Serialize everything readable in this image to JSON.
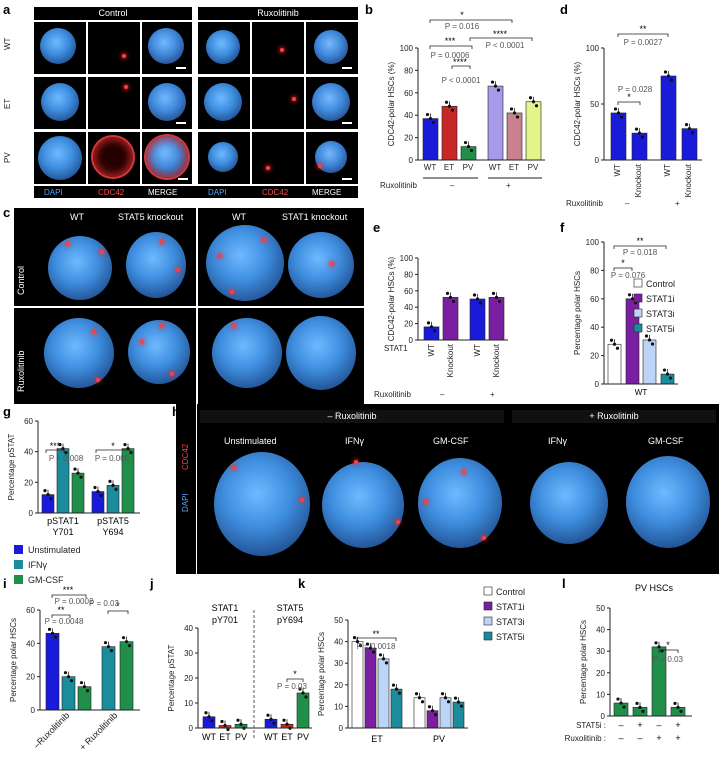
{
  "panels": {
    "a": "a",
    "b": "b",
    "c": "c",
    "d": "d",
    "e": "e",
    "f": "f",
    "g": "g",
    "h": "h",
    "i": "i",
    "j": "j",
    "k": "k",
    "l": "l"
  },
  "panel_a": {
    "col_headers": [
      "Control",
      "Ruxolitinib"
    ],
    "row_labels": [
      "WT",
      "ET",
      "PV"
    ],
    "channels": [
      "DAPI",
      "CDC42",
      "MERGE",
      "DAPI",
      "CDC42",
      "MERGE"
    ]
  },
  "panel_c": {
    "col_headers": [
      "WT",
      "STAT5 knockout",
      "WT",
      "STAT1 knockout"
    ],
    "row_labels": [
      "Control",
      "Ruxolitinib"
    ]
  },
  "panel_h": {
    "group_headers": [
      "– Ruxolitinib",
      "+ Ruxolitinib"
    ],
    "col_headers": [
      "Unstimulated",
      "IFNγ",
      "GM-CSF",
      "IFNγ",
      "GM-CSF"
    ],
    "side_labels": [
      "CDC42",
      "DAPI"
    ]
  },
  "colors": {
    "blue": "#1a1adb",
    "purple": "#7b1fa2",
    "lightblue": "#bcd4f5",
    "teal": "#1b8c9c",
    "green": "#1f8f4a",
    "red": "#c62828",
    "lavender": "#a59be8",
    "mauve": "#c9808f",
    "lime": "#e3f58a"
  },
  "chart_data": [
    {
      "panel": "b",
      "type": "bar",
      "ylabel": "CDC42-polar HSCs (%)",
      "ylim": [
        0,
        100
      ],
      "yticks": [
        0,
        20,
        40,
        60,
        80,
        100
      ],
      "categories": [
        "WT",
        "ET",
        "PV",
        "WT",
        "ET",
        "PV"
      ],
      "values": [
        37,
        48,
        12,
        66,
        42,
        52
      ],
      "treatment_label": "Ruxolitinib",
      "treatment_groups": [
        "–",
        "+"
      ],
      "annotations": [
        "*",
        "P = 0.016",
        "***",
        "P = 0.0006",
        "****",
        "P < 0.0001",
        "****",
        "P < 0.0001"
      ]
    },
    {
      "panel": "d",
      "type": "bar",
      "ylabel": "CDC42-polar HSCs (%)",
      "ylim": [
        0,
        100
      ],
      "yticks": [
        0,
        50,
        100
      ],
      "categories": [
        "WT",
        "Knockout",
        "WT",
        "Knockout"
      ],
      "values": [
        42,
        24,
        75,
        28
      ],
      "treatment_label": "Ruxolitinib",
      "treatment_groups": [
        "–",
        "+"
      ],
      "annotations": [
        "**",
        "P = 0.0027",
        "*",
        "P = 0.028"
      ]
    },
    {
      "panel": "e",
      "type": "bar",
      "ylabel": "CDC42-polar HSCs (%)",
      "ylim": [
        0,
        100
      ],
      "yticks": [
        0,
        20,
        40,
        60,
        80,
        100
      ],
      "categories": [
        "WT",
        "Knockout",
        "WT",
        "Knockout"
      ],
      "values": [
        16,
        52,
        50,
        52
      ],
      "row_label": "STAT1",
      "treatment_label": "Ruxolitinib",
      "treatment_groups": [
        "–",
        "+"
      ]
    },
    {
      "panel": "f",
      "type": "bar",
      "ylabel": "Percentage polar HSCs",
      "ylim": [
        0,
        100
      ],
      "yticks": [
        0,
        20,
        40,
        60,
        80,
        100
      ],
      "categories": [
        "Control",
        "STAT1i",
        "STAT3i",
        "STAT5i"
      ],
      "values": [
        28,
        60,
        31,
        7
      ],
      "xlabel": "WT",
      "legend": [
        "Control",
        "STAT1i",
        "STAT3i",
        "STAT5i"
      ],
      "annotations": [
        "**",
        "P = 0.018",
        "*",
        "P = 0.076"
      ]
    },
    {
      "panel": "g",
      "type": "bar",
      "ylabel": "Percentage pSTAT",
      "ylim": [
        0,
        60
      ],
      "yticks": [
        0,
        20,
        40,
        60
      ],
      "categories": [
        "pSTAT1 Y701",
        "pSTAT5 Y694"
      ],
      "series": [
        {
          "name": "Unstimulated",
          "values": [
            12,
            14
          ]
        },
        {
          "name": "IFNγ",
          "values": [
            42,
            18
          ]
        },
        {
          "name": "GM-CSF",
          "values": [
            26,
            42
          ]
        }
      ],
      "annotations": [
        "***",
        "P = 0.008",
        "*",
        "P = 0.005"
      ]
    },
    {
      "panel": "i",
      "type": "bar",
      "ylabel": "Percentage polar HSCs",
      "ylim": [
        0,
        60
      ],
      "yticks": [
        0,
        20,
        40,
        60
      ],
      "categories": [
        "–Ruxolitinib",
        "+ Ruxolitinib"
      ],
      "series": [
        {
          "name": "Unstimulated",
          "values": [
            46,
            38
          ]
        },
        {
          "name": "IFNγ",
          "values": [
            20,
            null
          ]
        },
        {
          "name": "GM-CSF",
          "values": [
            14,
            41
          ]
        }
      ],
      "annotations": [
        "***",
        "P = 0.0002",
        "**",
        "P = 0.0048",
        "*",
        "P = 0.03"
      ]
    },
    {
      "panel": "j",
      "type": "bar",
      "ylabel": "Percentage pSTAT",
      "ylim": [
        0,
        40
      ],
      "yticks": [
        0,
        10,
        20,
        30,
        40
      ],
      "groups": [
        "STAT1 pY701",
        "STAT5 pY694"
      ],
      "categories": [
        "WT",
        "ET",
        "PV",
        "WT",
        "ET",
        "PV"
      ],
      "values": [
        4.5,
        1,
        1.5,
        3.5,
        1.5,
        14
      ],
      "annotations": [
        "*",
        "P = 0.03"
      ]
    },
    {
      "panel": "k",
      "type": "bar",
      "ylabel": "Percentage polar HSCs",
      "ylim": [
        0,
        50
      ],
      "yticks": [
        0,
        10,
        20,
        30,
        40,
        50
      ],
      "categories": [
        "ET",
        "PV"
      ],
      "series": [
        {
          "name": "Control",
          "values": [
            40,
            14
          ]
        },
        {
          "name": "STAT1i",
          "values": [
            37,
            8
          ]
        },
        {
          "name": "STAT3i",
          "values": [
            32,
            14
          ]
        },
        {
          "name": "STAT5i",
          "values": [
            18,
            12
          ]
        }
      ],
      "annotations": [
        "**",
        "P = 0.0018"
      ]
    },
    {
      "panel": "l",
      "type": "bar",
      "title": "PV HSCs",
      "ylabel": "Percentage polar HSCs",
      "ylim": [
        0,
        50
      ],
      "yticks": [
        0,
        10,
        20,
        30,
        40,
        50
      ],
      "categories": [
        "1",
        "2",
        "3",
        "4"
      ],
      "values": [
        6,
        4,
        32,
        4
      ],
      "rows": [
        {
          "label": "STAT5i :",
          "marks": [
            "–",
            "+",
            "–",
            "+"
          ]
        },
        {
          "label": "Ruxolitinib :",
          "marks": [
            "–",
            "–",
            "+",
            "+"
          ]
        }
      ],
      "annotations": [
        "*",
        "P = 0.03"
      ]
    }
  ]
}
